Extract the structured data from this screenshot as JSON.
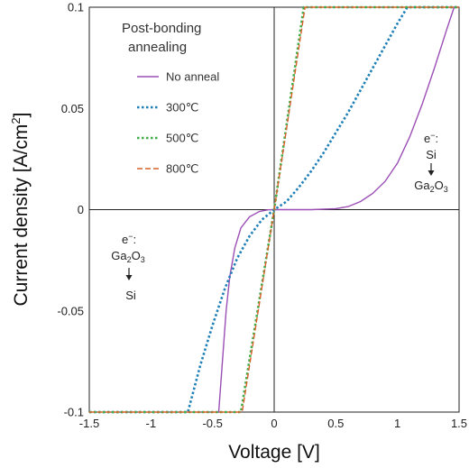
{
  "chart_data": {
    "type": "line",
    "xlabel": "Voltage [V]",
    "ylabel_main": "Current density [A/cm",
    "ylabel_sup": "2",
    "ylabel_end": "]",
    "xlim": [
      -1.5,
      1.5
    ],
    "ylim": [
      -0.1,
      0.1
    ],
    "x_ticks": [
      -1.5,
      -1,
      -0.5,
      0,
      0.5,
      1,
      1.5
    ],
    "x_tick_labels": [
      "-1.5",
      "-1",
      "-0.5",
      "0",
      "0.5",
      "1",
      "1.5"
    ],
    "y_ticks": [
      -0.1,
      -0.05,
      0,
      0.05,
      0.1
    ],
    "y_tick_labels": [
      "-0.1",
      "-0.05",
      "0",
      "0.05",
      "0.1"
    ],
    "grid": false,
    "legend": {
      "title_line1": "Post-bonding",
      "title_line2": "annealing",
      "placement": "top-left"
    },
    "series": [
      {
        "name": "No anneal",
        "color": "#9b4fb5",
        "style": "solid",
        "points": [
          [
            -0.45,
            -0.1
          ],
          [
            -0.42,
            -0.075
          ],
          [
            -0.39,
            -0.05
          ],
          [
            -0.36,
            -0.033
          ],
          [
            -0.32,
            -0.019
          ],
          [
            -0.27,
            -0.009
          ],
          [
            -0.2,
            -0.0035
          ],
          [
            -0.12,
            -0.0009
          ],
          [
            -0.05,
            -0.0001
          ],
          [
            0,
            0
          ],
          [
            0.1,
            0
          ],
          [
            0.3,
            0
          ],
          [
            0.5,
            0.0005
          ],
          [
            0.6,
            0.0015
          ],
          [
            0.7,
            0.004
          ],
          [
            0.8,
            0.008
          ],
          [
            0.9,
            0.014
          ],
          [
            1.0,
            0.023
          ],
          [
            1.1,
            0.036
          ],
          [
            1.2,
            0.052
          ],
          [
            1.3,
            0.07
          ],
          [
            1.4,
            0.089
          ],
          [
            1.46,
            0.1
          ],
          [
            1.5,
            0.1
          ]
        ]
      },
      {
        "name": "300℃",
        "color": "#1f80b8",
        "style": "dotted",
        "points": [
          [
            -1.5,
            -0.1
          ],
          [
            -0.7,
            -0.1
          ],
          [
            -0.6,
            -0.077
          ],
          [
            -0.5,
            -0.057
          ],
          [
            -0.4,
            -0.039
          ],
          [
            -0.3,
            -0.024
          ],
          [
            -0.2,
            -0.013
          ],
          [
            -0.1,
            -0.005
          ],
          [
            0,
            0
          ],
          [
            0.1,
            0.004
          ],
          [
            0.2,
            0.011
          ],
          [
            0.3,
            0.019
          ],
          [
            0.4,
            0.028
          ],
          [
            0.5,
            0.038
          ],
          [
            0.6,
            0.048
          ],
          [
            0.7,
            0.059
          ],
          [
            0.8,
            0.07
          ],
          [
            0.9,
            0.081
          ],
          [
            1.0,
            0.092
          ],
          [
            1.08,
            0.1
          ],
          [
            1.5,
            0.1
          ]
        ]
      },
      {
        "name": "500℃",
        "color": "#3fae49",
        "style": "dotted",
        "points": [
          [
            -1.5,
            -0.1
          ],
          [
            -0.27,
            -0.1
          ],
          [
            0,
            0
          ],
          [
            0.24,
            0.1
          ],
          [
            1.5,
            0.1
          ]
        ]
      },
      {
        "name": "800℃",
        "color": "#d9602b",
        "style": "dashed",
        "points": [
          [
            -1.5,
            -0.1
          ],
          [
            -0.26,
            -0.1
          ],
          [
            0,
            0
          ],
          [
            0.25,
            0.1
          ],
          [
            1.5,
            0.1
          ]
        ]
      }
    ],
    "annotations": {
      "right": {
        "line1": "e",
        "sup1": "−",
        "colon": ":",
        "line2": "Si",
        "line3_main": "Ga",
        "sub_a": "2",
        "line3_mid": "O",
        "sub_b": "3"
      },
      "left": {
        "line1": "e",
        "sup1": "−",
        "colon": ":",
        "line2_main": "Ga",
        "sub_a": "2",
        "line2_mid": "O",
        "sub_b": "3",
        "line3": "Si"
      }
    }
  }
}
